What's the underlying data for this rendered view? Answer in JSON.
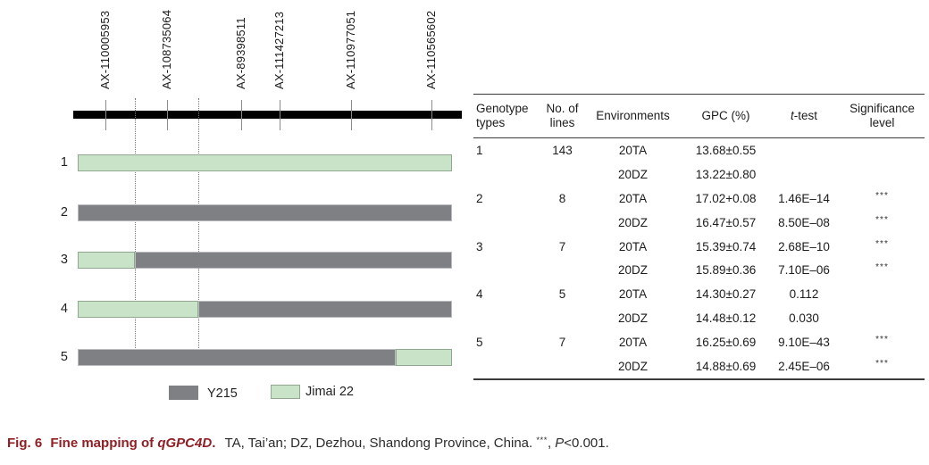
{
  "colors": {
    "y215": "#7f8084",
    "y215_border": "#bbbcbf",
    "jimai22": "#c9e3c9",
    "jimai22_border": "#8fa88f",
    "caption_accent": "#8e1f24"
  },
  "diagram": {
    "markers": [
      {
        "label": "AX-110005953"
      },
      {
        "label": "AX-108735064"
      },
      {
        "label": "AX-89398511"
      },
      {
        "label": "AX-111427213"
      },
      {
        "label": "AX-110977051"
      },
      {
        "label": "AX-110565602"
      }
    ],
    "bars": [
      {
        "label": "1",
        "segments": [
          {
            "parent_key": "jimai22",
            "pct": 100
          }
        ]
      },
      {
        "label": "2",
        "segments": [
          {
            "parent_key": "y215",
            "pct": 100
          }
        ]
      },
      {
        "label": "3",
        "segments": [
          {
            "parent_key": "jimai22",
            "pct": 15.3
          },
          {
            "parent_key": "y215",
            "pct": 84.7
          }
        ]
      },
      {
        "label": "4",
        "segments": [
          {
            "parent_key": "jimai22",
            "pct": 32.2
          },
          {
            "parent_key": "y215",
            "pct": 67.8
          }
        ]
      },
      {
        "label": "5",
        "segments": [
          {
            "parent_key": "y215",
            "pct": 85.0
          },
          {
            "parent_key": "jimai22",
            "pct": 15.0
          }
        ]
      }
    ],
    "legend": [
      {
        "key": "y215",
        "label": "Y215"
      },
      {
        "key": "jimai22",
        "label": "Jimai 22"
      }
    ]
  },
  "table": {
    "headers": {
      "genotype": "Genotype types",
      "lines": "No. of lines",
      "environments": "Environments",
      "gpc": "GPC (%)",
      "ttest_italic": "t",
      "ttest_rest": "-test",
      "significance": "Significance level"
    },
    "rows": [
      {
        "genotype": "1",
        "lines": "143",
        "env": "20TA",
        "gpc": "13.68±0.55",
        "ttest": "",
        "sig": ""
      },
      {
        "genotype": "",
        "lines": "",
        "env": "20DZ",
        "gpc": "13.22±0.80",
        "ttest": "",
        "sig": ""
      },
      {
        "genotype": "2",
        "lines": "8",
        "env": "20TA",
        "gpc": "17.02+0.08",
        "ttest": "1.46E–14",
        "sig": "***"
      },
      {
        "genotype": "",
        "lines": "",
        "env": "20DZ",
        "gpc": "16.47±0.57",
        "ttest": "8.50E–08",
        "sig": "***"
      },
      {
        "genotype": "3",
        "lines": "7",
        "env": "20TA",
        "gpc": "15.39±0.74",
        "ttest": "2.68E–10",
        "sig": "***"
      },
      {
        "genotype": "",
        "lines": "",
        "env": "20DZ",
        "gpc": "15.89±0.36",
        "ttest": "7.10E–06",
        "sig": "***"
      },
      {
        "genotype": "4",
        "lines": "5",
        "env": "20TA",
        "gpc": "14.30±0.27",
        "ttest": "0.112",
        "sig": ""
      },
      {
        "genotype": "",
        "lines": "",
        "env": "20DZ",
        "gpc": "14.48±0.12",
        "ttest": "0.030",
        "sig": ""
      },
      {
        "genotype": "5",
        "lines": "7",
        "env": "20TA",
        "gpc": "16.25±0.69",
        "ttest": "9.10E–43",
        "sig": "***"
      },
      {
        "genotype": "",
        "lines": "",
        "env": "20DZ",
        "gpc": "14.88±0.69",
        "ttest": "2.45E–06",
        "sig": "***"
      }
    ]
  },
  "caption": {
    "fig_label": "Fig. 6",
    "title": "Fine mapping of ",
    "gene": "qGPC4D",
    "title_period": ".",
    "body": "TA, Tai’an; DZ, Dezhou, Shandong Province, China.",
    "sig_marks": "***",
    "sig_sep": ", ",
    "p_symbol": "P",
    "p_value": "<0.001."
  }
}
